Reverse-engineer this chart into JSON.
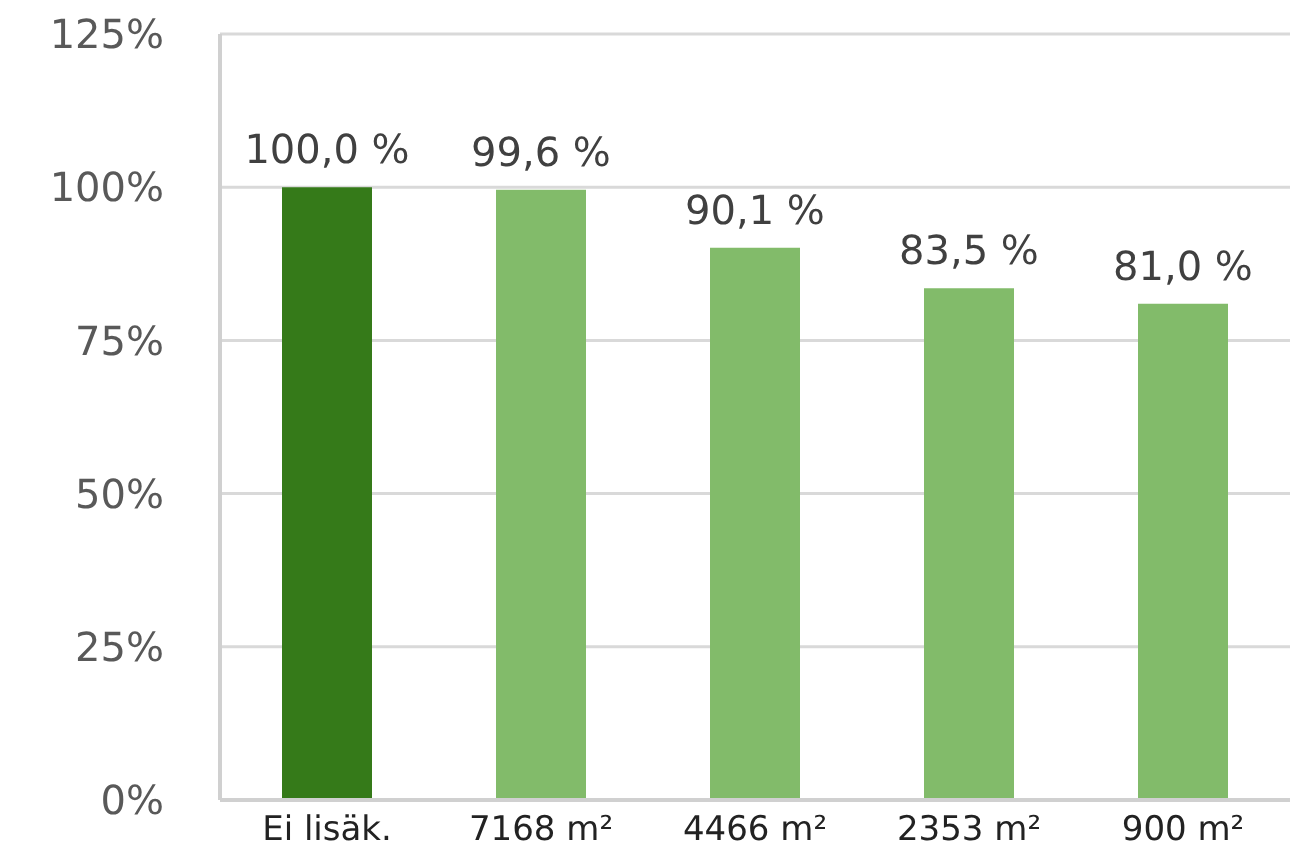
{
  "chart_data": {
    "type": "bar",
    "categories": [
      "Ei lisäk.",
      "7168 m²",
      "4466 m²",
      "2353 m²",
      "900 m²"
    ],
    "values": [
      100.0,
      99.6,
      90.1,
      83.5,
      81.0
    ],
    "colors": [
      "#357a19",
      "#82bb6a",
      "#82bb6a",
      "#82bb6a",
      "#82bb6a"
    ],
    "value_labels": [
      "100,0 %",
      "99,6 %",
      "90,1 %",
      "83,5 %",
      "81,0 %"
    ],
    "ylim": [
      0,
      125
    ],
    "yticks": [
      {
        "value": 0,
        "label": "0%"
      },
      {
        "value": 25,
        "label": "25%"
      },
      {
        "value": 50,
        "label": "50%"
      },
      {
        "value": 75,
        "label": "75%"
      },
      {
        "value": 100,
        "label": "100%"
      },
      {
        "value": 125,
        "label": "125%"
      }
    ],
    "grid": "y"
  }
}
